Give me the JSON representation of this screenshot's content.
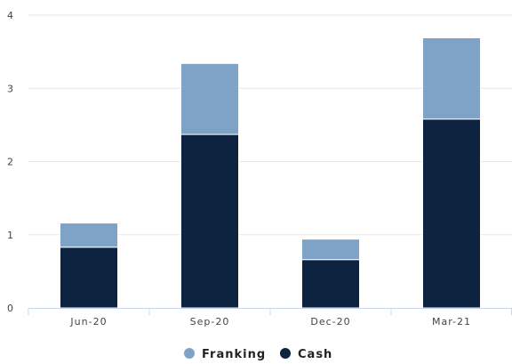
{
  "chart_data": {
    "type": "bar",
    "stacked": true,
    "categories": [
      "Jun-20",
      "Sep-20",
      "Dec-20",
      "Mar-21"
    ],
    "series": [
      {
        "name": "Cash",
        "values": [
          0.83,
          2.37,
          0.66,
          2.58
        ],
        "color": "#0d2340"
      },
      {
        "name": "Franking",
        "values": [
          0.33,
          0.97,
          0.28,
          1.11
        ],
        "color": "#7fa3c6"
      }
    ],
    "ylim": [
      0,
      4
    ],
    "yticks": [
      "0",
      "1",
      "2",
      "3",
      "4"
    ],
    "grid": true,
    "legend": {
      "position": "bottom",
      "entries": [
        "Franking",
        "Cash"
      ]
    },
    "title": "",
    "xlabel": "",
    "ylabel": ""
  }
}
